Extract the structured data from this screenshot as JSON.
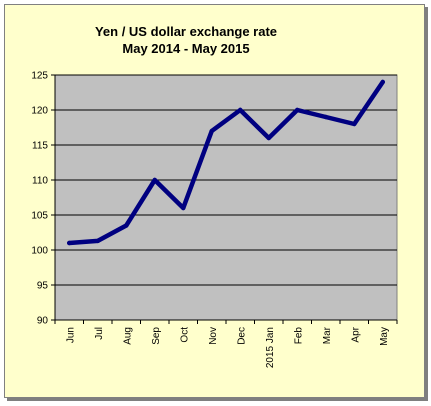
{
  "chart_data": {
    "type": "line",
    "title": "Yen / US dollar exchange rate",
    "subtitle": "May 2014 - May 2015",
    "xlabel": "",
    "ylabel": "",
    "categories": [
      "Jun",
      "Jul",
      "Aug",
      "Sep",
      "Oct",
      "Nov",
      "Dec",
      "2015 Jan",
      "Feb",
      "Mar",
      "Apr",
      "May"
    ],
    "series": [
      {
        "values": [
          101.0,
          101.3,
          103.5,
          110.0,
          106.0,
          117.0,
          120.0,
          116.0,
          120.0,
          119.0,
          118.0,
          124.0
        ]
      }
    ],
    "ylim": [
      90,
      125
    ],
    "yticks": [
      90,
      95,
      100,
      105,
      110,
      115,
      120,
      125
    ],
    "grid": true,
    "legend": "none",
    "colors": {
      "line": "#000080",
      "plot_background": "#c0c0c0",
      "chart_background": "#ffffcc",
      "gridline": "#000000"
    }
  }
}
